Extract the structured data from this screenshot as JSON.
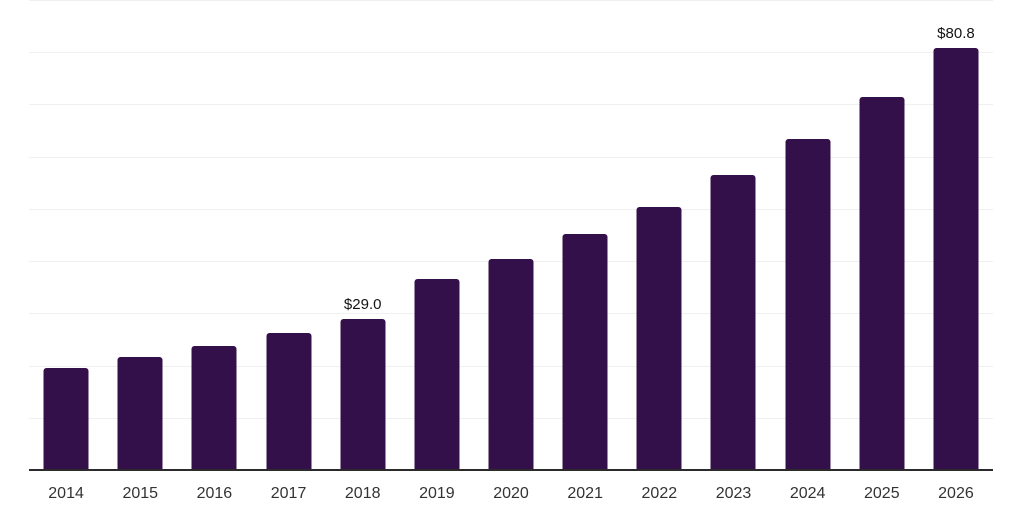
{
  "chart_data": {
    "type": "bar",
    "title": "",
    "xlabel": "",
    "ylabel": "",
    "categories": [
      "2014",
      "2015",
      "2016",
      "2017",
      "2018",
      "2019",
      "2020",
      "2021",
      "2022",
      "2023",
      "2024",
      "2025",
      "2026"
    ],
    "values": [
      19.5,
      21.6,
      23.8,
      26.3,
      29.0,
      36.5,
      40.5,
      45.2,
      50.3,
      56.5,
      63.4,
      71.4,
      80.8
    ],
    "annotations": [
      {
        "index": 4,
        "text": "$29.0"
      },
      {
        "index": 12,
        "text": "$80.8"
      }
    ],
    "ylim": [
      0,
      90
    ],
    "gridline_interval": 10,
    "grid": "horizontal",
    "y_axis_labels_visible": false,
    "legend": "none",
    "colors": {
      "bar": "#34104a",
      "gridline": "#f0f0f0",
      "axis_line": "#2b2b2b",
      "tick_label": "#333333",
      "annotation": "#141414",
      "background": "#ffffff"
    }
  }
}
